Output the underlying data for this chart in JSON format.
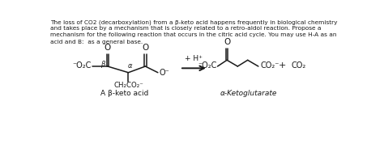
{
  "bg_color": "#ffffff",
  "text_color": "#1a1a1a",
  "para_line1": "The loss of CO2 (decarboxylation) from a β-keto acid happens frequently in biological chemistry",
  "para_line2": "and takes place by a mechanism that is closely related to a retro-aldol reaction. Propose a",
  "para_line3": "mechanism for the following reaction that occurs in the citric acid cycle. You may use H-A as an",
  "para_line4": "acid and B:  as a general base.",
  "label_left": "A β-keto acid",
  "label_right": "α-Ketoglutarate",
  "arrow_label": "+ H⁺",
  "co2_minus": "CO₂⁻",
  "co2": "CO₂",
  "neg_o2c_left": "⁻O₂C",
  "beta_label": "β",
  "alpha_label": "α",
  "ch2co2": "CH₂CO₂⁻",
  "o_minus": "O⁻",
  "neg_o2c_right": "⁻O₂C",
  "product_plus": "+"
}
